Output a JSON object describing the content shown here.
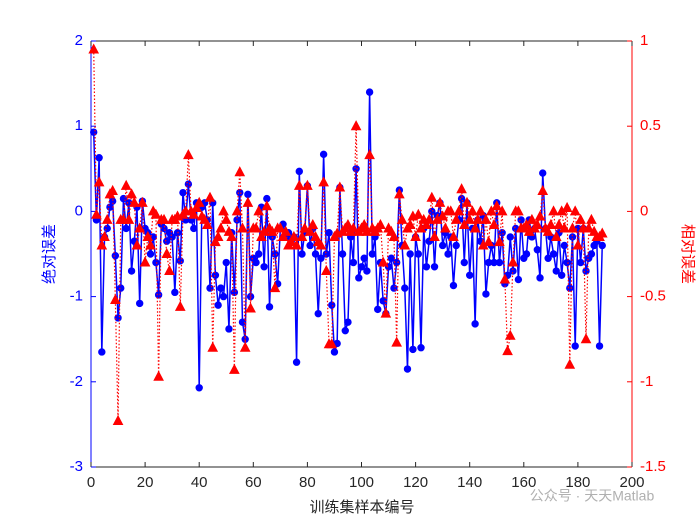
{
  "chart_data": {
    "type": "line",
    "xlabel": "训练集样本编号",
    "ylabel": "绝对误差",
    "y2label": "相对误差",
    "watermark": "公众号 · 天天Matlab",
    "xlim": [
      0,
      200
    ],
    "xticks": [
      0,
      20,
      40,
      60,
      80,
      100,
      120,
      140,
      160,
      180,
      200
    ],
    "ylim": [
      -3,
      2
    ],
    "yticks": [
      -3,
      -2,
      -1,
      0,
      1,
      2
    ],
    "y2lim": [
      -1.5,
      1
    ],
    "y2ticks": [
      -1.5,
      -1,
      -0.5,
      0,
      0.5,
      1
    ],
    "x": [
      1,
      2,
      3,
      4,
      5,
      6,
      7,
      8,
      9,
      10,
      11,
      12,
      13,
      14,
      15,
      16,
      17,
      18,
      19,
      20,
      21,
      22,
      23,
      24,
      25,
      26,
      27,
      28,
      29,
      30,
      31,
      32,
      33,
      34,
      35,
      36,
      37,
      38,
      39,
      40,
      41,
      42,
      43,
      44,
      45,
      46,
      47,
      48,
      49,
      50,
      51,
      52,
      53,
      54,
      55,
      56,
      57,
      58,
      59,
      60,
      61,
      62,
      63,
      64,
      65,
      66,
      67,
      68,
      69,
      70,
      71,
      72,
      73,
      74,
      75,
      76,
      77,
      78,
      79,
      80,
      81,
      82,
      83,
      84,
      85,
      86,
      87,
      88,
      89,
      90,
      91,
      92,
      93,
      94,
      95,
      96,
      97,
      98,
      99,
      100,
      101,
      102,
      103,
      104,
      105,
      106,
      107,
      108,
      109,
      110,
      111,
      112,
      113,
      114,
      115,
      116,
      117,
      118,
      119,
      120,
      121,
      122,
      123,
      124,
      125,
      126,
      127,
      128,
      129,
      130,
      131,
      132,
      133,
      134,
      135,
      136,
      137,
      138,
      139,
      140,
      141,
      142,
      143,
      144,
      145,
      146,
      147,
      148,
      149,
      150,
      151,
      152,
      153,
      154,
      155,
      156,
      157,
      158,
      159,
      160,
      161,
      162,
      163,
      164,
      165,
      166,
      167,
      168,
      169,
      170,
      171,
      172,
      173,
      174,
      175,
      176,
      177,
      178,
      179,
      180,
      181,
      182,
      183,
      184,
      185,
      186,
      187,
      188,
      189
    ],
    "series": [
      {
        "color": "#0000ff",
        "marker": "circle",
        "linestyle": "solid",
        "axis": "y",
        "values": [
          0.93,
          -0.1,
          0.63,
          -1.65,
          -0.3,
          -0.2,
          0.05,
          0.12,
          -0.52,
          -1.25,
          -0.9,
          0.15,
          -0.2,
          0.1,
          -0.7,
          -0.35,
          0.05,
          -1.08,
          0.12,
          -0.2,
          -0.25,
          -0.5,
          -0.3,
          -0.6,
          -0.98,
          -0.15,
          -0.2,
          -0.35,
          -0.25,
          -0.3,
          -0.95,
          -0.25,
          -0.58,
          0.22,
          -0.1,
          0.32,
          -0.1,
          -0.2,
          0.1,
          -2.07,
          0.05,
          0.1,
          -0.1,
          -0.9,
          0.1,
          -0.75,
          -1.1,
          -0.9,
          -1.0,
          -0.6,
          -1.38,
          -0.25,
          -0.95,
          -0.1,
          0.22,
          -1.3,
          -1.5,
          0.2,
          -1.0,
          -0.55,
          -0.6,
          -0.5,
          0.05,
          -0.65,
          0.15,
          -1.12,
          -0.3,
          -0.5,
          -0.85,
          -0.2,
          -0.15,
          -0.3,
          -0.25,
          -0.35,
          -0.3,
          -1.77,
          0.47,
          -0.5,
          -0.25,
          0.3,
          -0.4,
          -0.2,
          -0.5,
          -1.2,
          -0.55,
          0.67,
          -0.5,
          -0.25,
          -1.1,
          -1.65,
          -1.55,
          0.28,
          -0.5,
          -1.4,
          -1.3,
          -0.3,
          -0.6,
          0.5,
          -0.78,
          -0.65,
          -0.55,
          -0.7,
          1.4,
          -0.5,
          -0.3,
          -1.15,
          -0.6,
          -1.05,
          -1.2,
          -0.65,
          -0.55,
          -0.9,
          -0.6,
          0.25,
          -0.4,
          -0.9,
          -1.85,
          -0.5,
          -1.62,
          -0.3,
          -0.5,
          -1.6,
          -0.2,
          -0.65,
          -0.35,
          0.0,
          -0.65,
          -0.05,
          0.1,
          -0.4,
          -0.25,
          -0.5,
          -0.3,
          -0.87,
          -0.4,
          -0.1,
          0.15,
          -0.6,
          0.1,
          -0.75,
          -0.2,
          -1.32,
          -0.1,
          -0.35,
          -0.05,
          -0.97,
          -0.6,
          -0.4,
          -0.6,
          0.1,
          -0.6,
          -0.25,
          -0.85,
          -0.75,
          -0.3,
          -0.7,
          -0.2,
          -0.8,
          -0.1,
          -0.55,
          -0.5,
          -0.1,
          -0.3,
          -0.2,
          -0.45,
          -0.78,
          0.45,
          -0.2,
          -0.55,
          -0.3,
          -0.5,
          -0.7,
          -0.25,
          -0.75,
          -0.4,
          -0.6,
          -0.9,
          -0.3,
          -1.58,
          -0.2,
          -0.6,
          -0.2,
          -0.7,
          -0.55,
          -0.5,
          -0.4,
          -0.35,
          -1.58,
          -0.4
        ]
      },
      {
        "color": "#ff0000",
        "marker": "triangle",
        "linestyle": "dotted",
        "axis": "y2",
        "values": [
          0.95,
          -0.02,
          0.17,
          -0.2,
          -0.15,
          -0.05,
          0.1,
          0.12,
          -0.52,
          -1.23,
          -0.05,
          -0.05,
          0.15,
          -0.05,
          0.1,
          0.05,
          -0.2,
          -0.1,
          0.05,
          -0.3,
          -0.15,
          -0.2,
          0.0,
          -0.02,
          -0.97,
          -0.05,
          -0.05,
          -0.25,
          -0.35,
          -0.05,
          -0.05,
          -0.03,
          -0.56,
          -0.02,
          0.0,
          0.33,
          0.0,
          -0.02,
          0.02,
          0.05,
          -0.03,
          -0.05,
          -0.08,
          0.08,
          -0.8,
          -0.18,
          -0.15,
          -0.1,
          0.0,
          -0.05,
          -0.12,
          -0.15,
          -0.93,
          0.0,
          0.23,
          -0.1,
          -0.8,
          0.05,
          -0.57,
          -0.1,
          -0.1,
          0.0,
          -0.15,
          -0.12,
          0.03,
          -0.1,
          -0.12,
          -0.45,
          -0.1,
          -0.1,
          -0.15,
          -0.12,
          -0.2,
          -0.18,
          -0.15,
          -0.2,
          0.15,
          -0.15,
          -0.1,
          0.15,
          -0.12,
          -0.08,
          -0.15,
          -0.18,
          -0.2,
          0.17,
          -0.35,
          -0.78,
          -0.78,
          -0.15,
          -0.13,
          0.14,
          -0.12,
          -0.1,
          -0.08,
          -0.12,
          -0.1,
          0.5,
          -0.12,
          -0.1,
          -0.08,
          -0.12,
          0.33,
          -0.1,
          -0.12,
          -0.1,
          -0.08,
          -0.3,
          -0.6,
          -0.1,
          -0.12,
          -0.15,
          -0.77,
          0.1,
          -0.05,
          -0.2,
          -0.1,
          -0.08,
          -0.03,
          -0.15,
          -0.02,
          -0.1,
          -0.05,
          -0.08,
          -0.05,
          0.08,
          -0.15,
          -0.05,
          0.05,
          -0.03,
          -0.1,
          0.0,
          0.0,
          -0.15,
          -0.05,
          0.0,
          0.13,
          -0.08,
          0.05,
          -0.05,
          0.0,
          -0.1,
          -0.05,
          0.0,
          -0.2,
          -0.05,
          -0.18,
          0.0,
          -0.08,
          0.03,
          -0.18,
          0.0,
          -0.4,
          -0.82,
          -0.73,
          -0.3,
          0.0,
          0.0,
          -0.1,
          -0.1,
          -0.08,
          -0.12,
          -0.05,
          -0.1,
          -0.08,
          -0.03,
          0.12,
          -0.1,
          -0.12,
          -0.08,
          0.0,
          -0.15,
          -0.08,
          0.0,
          -0.1,
          0.02,
          -0.9,
          -0.1,
          0.0,
          -0.2,
          -0.05,
          -0.1,
          -0.75,
          -0.1,
          -0.05,
          -0.12,
          -0.15,
          -0.15,
          -0.13
        ]
      }
    ]
  }
}
